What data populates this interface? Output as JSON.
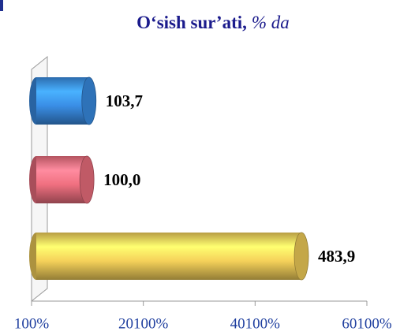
{
  "chart_data": {
    "type": "cylinder_bar_horizontal",
    "title": "O‘sish sur’ati,",
    "title_unit": "% da",
    "values": [
      103.7,
      100.0,
      483.9
    ],
    "value_labels": [
      "103,7",
      "100,0",
      "483,9"
    ],
    "colors": [
      "#3a8ee6",
      "#f07080",
      "#f5d15a"
    ],
    "xlim": [
      1,
      601
    ],
    "xticks": [
      {
        "value": 1,
        "label": "100%"
      },
      {
        "value": 201,
        "label": "20100%"
      },
      {
        "value": 401,
        "label": "40100%"
      },
      {
        "value": 601,
        "label": "60100%"
      }
    ]
  }
}
